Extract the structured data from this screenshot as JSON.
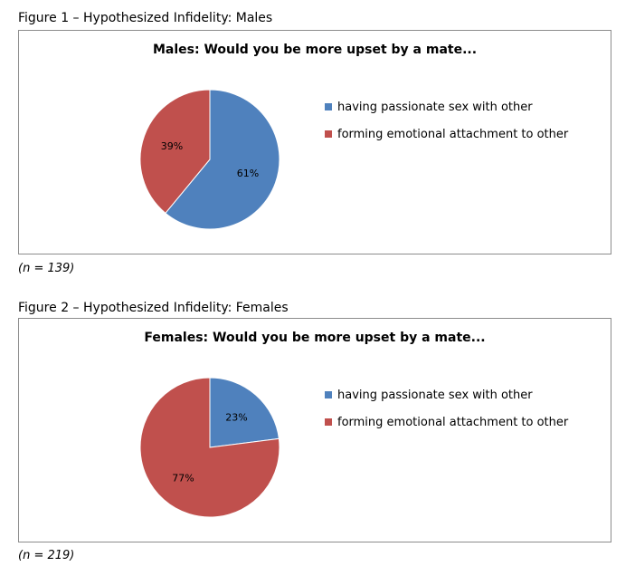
{
  "figures": [
    {
      "caption": "Figure 1 – Hypothesized Infidelity: Males",
      "note": "(n = 139)"
    },
    {
      "caption": "Figure 2 – Hypothesized Infidelity: Females",
      "note": "(n = 219)"
    }
  ],
  "chart_data": [
    {
      "type": "pie",
      "title": "Males: Would you be more upset by a mate...",
      "categories": [
        "having passionate sex with other",
        "forming emotional attachment to other"
      ],
      "values": [
        61,
        39
      ],
      "labels": [
        "61%",
        "39%"
      ],
      "colors": [
        "#4f81bd",
        "#c0504d"
      ],
      "legend_position": "right"
    },
    {
      "type": "pie",
      "title": "Females: Would you be more upset by a mate...",
      "categories": [
        "having passionate sex with other",
        "forming emotional attachment to other"
      ],
      "values": [
        23,
        77
      ],
      "labels": [
        "23%",
        "77%"
      ],
      "colors": [
        "#4f81bd",
        "#c0504d"
      ],
      "legend_position": "right"
    }
  ]
}
